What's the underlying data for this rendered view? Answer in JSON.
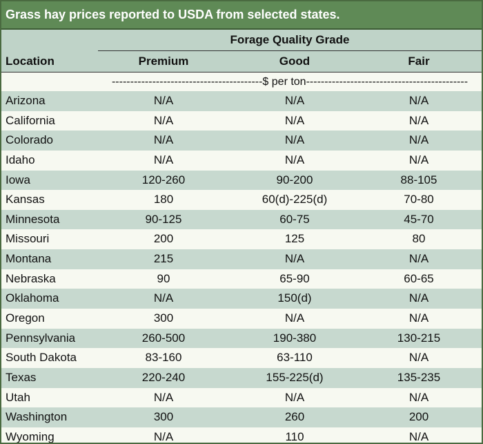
{
  "title": "Grass hay prices reported to USDA from selected states.",
  "group_header": "Forage Quality Grade",
  "location_header": "Location",
  "columns": [
    "Premium",
    "Good",
    "Fair"
  ],
  "unit_line": "-----------------------------------------$ per ton--------------------------------------------",
  "rows": [
    {
      "location": "Arizona",
      "premium": "N/A",
      "good": "N/A",
      "fair": "N/A"
    },
    {
      "location": "California",
      "premium": "N/A",
      "good": "N/A",
      "fair": "N/A"
    },
    {
      "location": "Colorado",
      "premium": "N/A",
      "good": "N/A",
      "fair": "N/A"
    },
    {
      "location": "Idaho",
      "premium": "N/A",
      "good": "N/A",
      "fair": "N/A"
    },
    {
      "location": "Iowa",
      "premium": "120-260",
      "good": "90-200",
      "fair": "88-105"
    },
    {
      "location": "Kansas",
      "premium": "180",
      "good": "60(d)-225(d)",
      "fair": "70-80"
    },
    {
      "location": "Minnesota",
      "premium": "90-125",
      "good": "60-75",
      "fair": "45-70"
    },
    {
      "location": "Missouri",
      "premium": "200",
      "good": "125",
      "fair": "80"
    },
    {
      "location": "Montana",
      "premium": "215",
      "good": "N/A",
      "fair": "N/A"
    },
    {
      "location": "Nebraska",
      "premium": "90",
      "good": "65-90",
      "fair": "60-65"
    },
    {
      "location": "Oklahoma",
      "premium": "N/A",
      "good": "150(d)",
      "fair": "N/A"
    },
    {
      "location": "Oregon",
      "premium": "300",
      "good": "N/A",
      "fair": "N/A"
    },
    {
      "location": "Pennsylvania",
      "premium": "260-500",
      "good": "190-380",
      "fair": "130-215"
    },
    {
      "location": "South Dakota",
      "premium": "83-160",
      "good": "63-110",
      "fair": "N/A"
    },
    {
      "location": "Texas",
      "premium": "220-240",
      "good": "155-225(d)",
      "fair": "135-235"
    },
    {
      "location": "Utah",
      "premium": "N/A",
      "good": "N/A",
      "fair": "N/A"
    },
    {
      "location": "Washington",
      "premium": "300",
      "good": "260",
      "fair": "200"
    },
    {
      "location": "Wyoming",
      "premium": "N/A",
      "good": "110",
      "fair": "N/A"
    }
  ]
}
